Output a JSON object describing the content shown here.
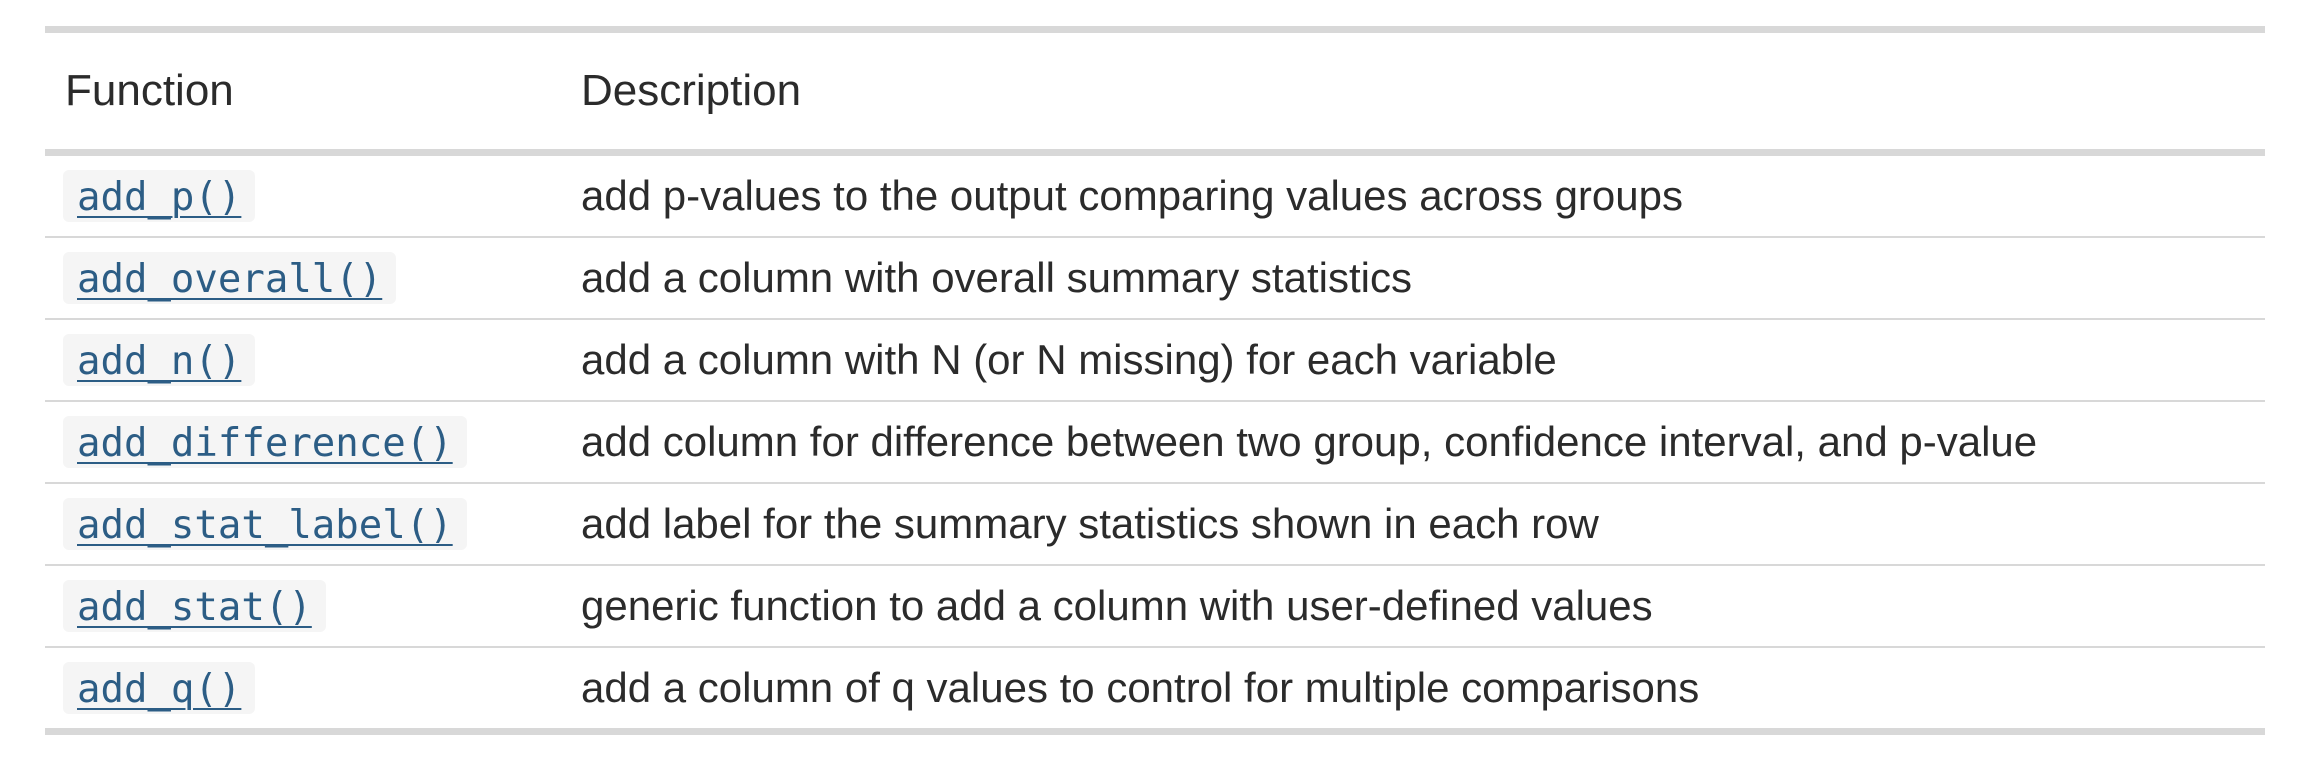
{
  "table": {
    "headers": {
      "function": "Function",
      "description": "Description"
    },
    "rows": [
      {
        "function": "add_p()",
        "description": "add p-values to the output comparing values across groups"
      },
      {
        "function": "add_overall()",
        "description": "add a column with overall summary statistics"
      },
      {
        "function": "add_n()",
        "description": "add a column with N (or N missing) for each variable"
      },
      {
        "function": "add_difference()",
        "description": "add column for difference between two group, confidence interval, and p-value"
      },
      {
        "function": "add_stat_label()",
        "description": "add label for the summary statistics shown in each row"
      },
      {
        "function": "add_stat()",
        "description": "generic function to add a column with user-defined values"
      },
      {
        "function": "add_q()",
        "description": "add a column of q values to control for multiple comparisons"
      }
    ]
  },
  "colors": {
    "link": "#2c5d85",
    "code_background": "#f5f5f5",
    "rule": "#d8d8d8",
    "text": "#2b2b2b"
  }
}
